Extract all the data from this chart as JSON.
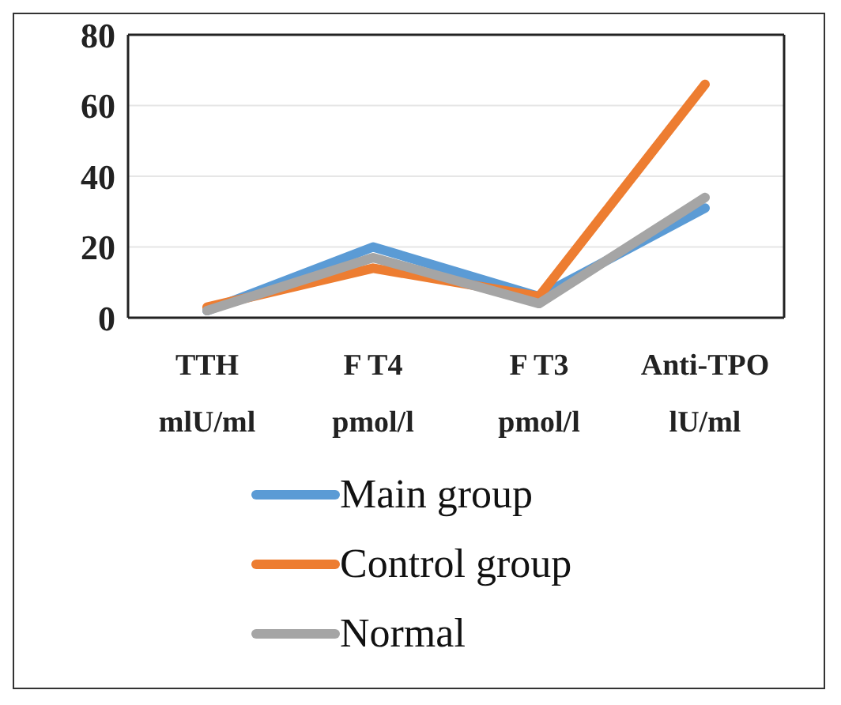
{
  "chart_data": {
    "type": "line",
    "categories": [
      "TTH\nmlU/ml",
      "F T4\npmol/l",
      "F T3\npmol/l",
      "Anti-TPO\nlU/ml"
    ],
    "series": [
      {
        "name": "Main group",
        "color": "#5b9bd5",
        "values": [
          2,
          20,
          6,
          31
        ]
      },
      {
        "name": "Control group",
        "color": "#ed7d31",
        "values": [
          3,
          14,
          6,
          66
        ]
      },
      {
        "name": "Normal",
        "color": "#a5a5a5",
        "values": [
          2,
          17,
          4,
          34
        ]
      }
    ],
    "ylim": [
      0,
      80
    ],
    "yticks": [
      0,
      20,
      40,
      60,
      80
    ],
    "grid": "y",
    "legend": "bottom",
    "marker": "none",
    "line_style": "solid"
  }
}
